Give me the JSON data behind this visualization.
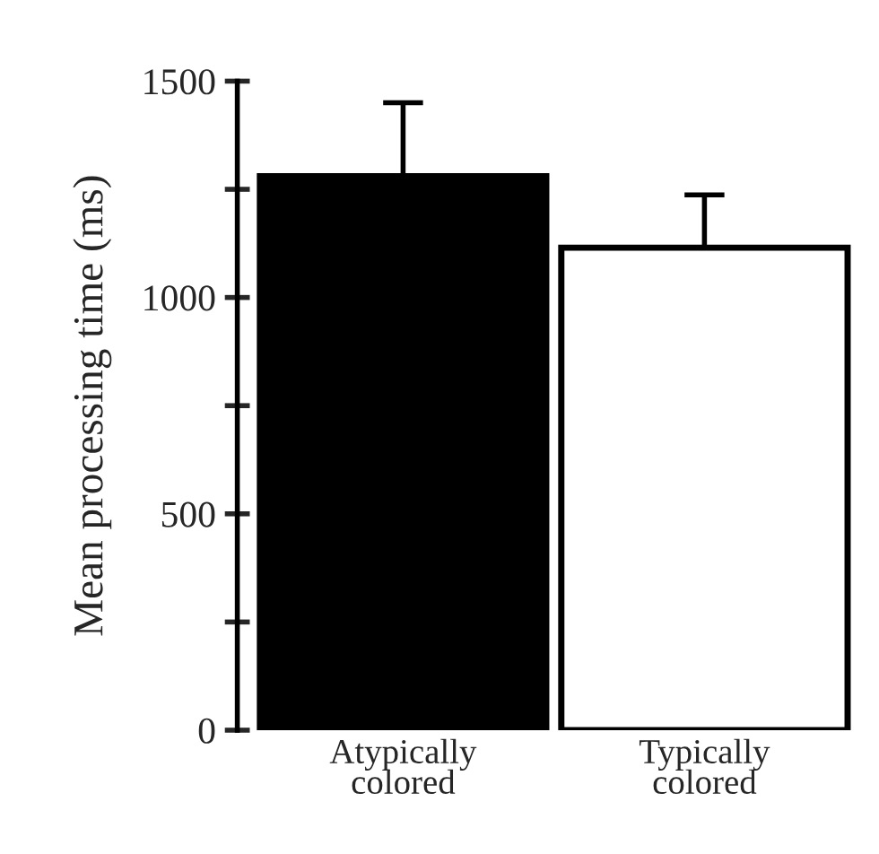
{
  "chart_data": {
    "type": "bar",
    "ylabel": "Mean processing time (ms)",
    "categories": [
      "Atypically\ncolored",
      "Typically\ncolored"
    ],
    "values": [
      1280,
      1115
    ],
    "colors": [
      "#000000",
      "#ffffff"
    ],
    "errors": [
      [
        1280,
        1450
      ],
      [
        1115,
        1237
      ]
    ],
    "ylim": [
      0,
      1500
    ],
    "yticks": [
      0,
      {
        "value": 250,
        "label": null
      },
      500,
      {
        "value": 750,
        "label": null
      },
      1000,
      {
        "value": 1250,
        "label": null
      },
      1500
    ],
    "grid": false,
    "legend": false
  }
}
